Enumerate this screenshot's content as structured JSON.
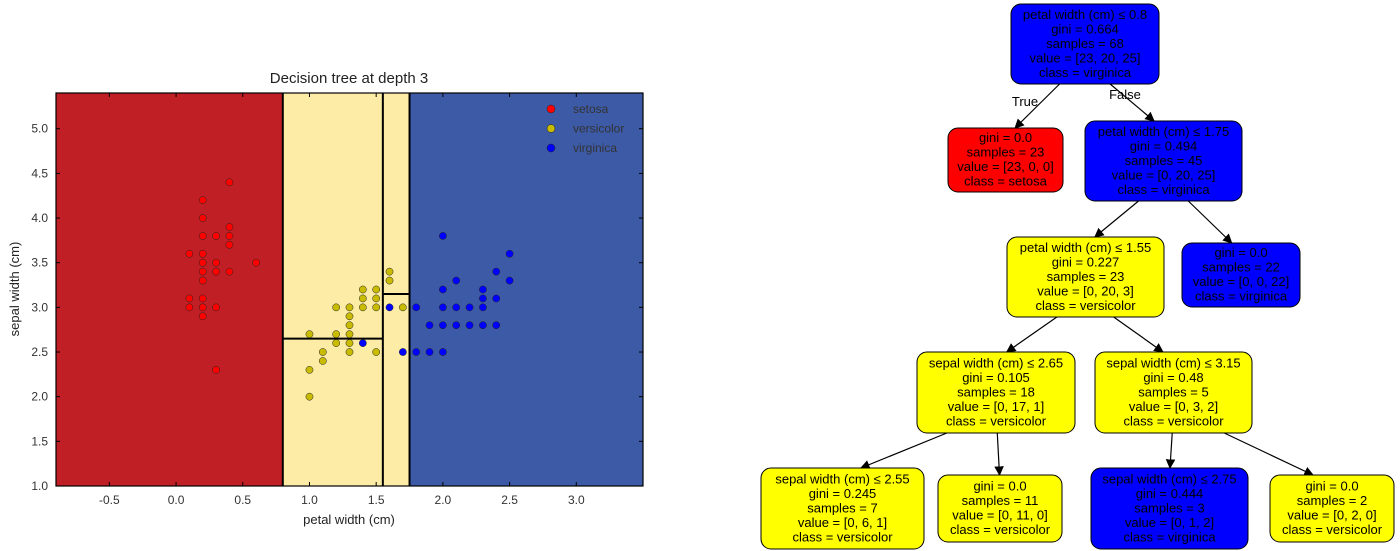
{
  "chart_data": [
    {
      "type": "scatter",
      "title": "Decision tree at depth 3",
      "xlabel": "petal width (cm)",
      "ylabel": "sepal width (cm)",
      "xlim": [
        -0.9,
        3.5
      ],
      "ylim": [
        1.0,
        5.4
      ],
      "xticks": [
        "-0.5",
        "0.0",
        "0.5",
        "1.0",
        "1.5",
        "2.0",
        "2.5",
        "3.0"
      ],
      "yticks": [
        "1.0",
        "1.5",
        "2.0",
        "2.5",
        "3.0",
        "3.5",
        "4.0",
        "4.5",
        "5.0"
      ],
      "grid": false,
      "legend_position": "top-right",
      "decision_regions": [
        {
          "class": "setosa",
          "x_range": [
            -0.9,
            0.8
          ],
          "y_range": [
            1.0,
            5.4
          ],
          "color": "#c11f26"
        },
        {
          "class": "versicolor",
          "x_range": [
            0.8,
            1.55
          ],
          "y_range": [
            1.0,
            5.4
          ],
          "color": "#fdeca6"
        },
        {
          "class": "versicolor",
          "x_range": [
            1.55,
            1.75
          ],
          "y_range": [
            1.0,
            5.4
          ],
          "color": "#fdeca6"
        },
        {
          "class": "virginica",
          "x_range": [
            1.75,
            3.5
          ],
          "y_range": [
            1.0,
            5.4
          ],
          "color": "#3c5aa6"
        }
      ],
      "boundaries": [
        {
          "x": [
            0.8,
            0.8
          ],
          "y": [
            1.0,
            5.4
          ]
        },
        {
          "x": [
            1.55,
            1.55
          ],
          "y": [
            1.0,
            5.4
          ]
        },
        {
          "x": [
            1.75,
            1.75
          ],
          "y": [
            1.0,
            5.4
          ]
        },
        {
          "x": [
            0.8,
            1.55
          ],
          "y": [
            2.65,
            2.65
          ]
        },
        {
          "x": [
            1.55,
            1.75
          ],
          "y": [
            3.15,
            3.15
          ]
        }
      ],
      "series": [
        {
          "name": "setosa",
          "color": "#ff0000",
          "points": [
            [
              0.1,
              3.6
            ],
            [
              0.2,
              3.6
            ],
            [
              0.1,
              3.1
            ],
            [
              0.1,
              3.0
            ],
            [
              0.2,
              4.2
            ],
            [
              0.2,
              4.0
            ],
            [
              0.2,
              3.8
            ],
            [
              0.2,
              3.5
            ],
            [
              0.2,
              3.4
            ],
            [
              0.2,
              3.3
            ],
            [
              0.2,
              3.1
            ],
            [
              0.2,
              3.0
            ],
            [
              0.2,
              2.9
            ],
            [
              0.3,
              3.8
            ],
            [
              0.3,
              3.5
            ],
            [
              0.3,
              3.4
            ],
            [
              0.3,
              3.0
            ],
            [
              0.3,
              2.3
            ],
            [
              0.4,
              4.4
            ],
            [
              0.4,
              3.9
            ],
            [
              0.4,
              3.8
            ],
            [
              0.4,
              3.7
            ],
            [
              0.4,
              3.4
            ],
            [
              0.6,
              3.5
            ]
          ]
        },
        {
          "name": "versicolor",
          "color": "#c8bb00",
          "points": [
            [
              1.0,
              2.7
            ],
            [
              1.0,
              2.3
            ],
            [
              1.0,
              2.0
            ],
            [
              1.1,
              2.5
            ],
            [
              1.1,
              2.4
            ],
            [
              1.2,
              3.0
            ],
            [
              1.2,
              2.7
            ],
            [
              1.2,
              2.6
            ],
            [
              1.3,
              3.0
            ],
            [
              1.3,
              2.9
            ],
            [
              1.3,
              2.8
            ],
            [
              1.3,
              2.7
            ],
            [
              1.3,
              2.6
            ],
            [
              1.3,
              2.5
            ],
            [
              1.4,
              3.2
            ],
            [
              1.4,
              3.1
            ],
            [
              1.4,
              3.0
            ],
            [
              1.5,
              3.2
            ],
            [
              1.5,
              3.1
            ],
            [
              1.5,
              3.0
            ],
            [
              1.5,
              2.5
            ],
            [
              1.6,
              3.4
            ],
            [
              1.6,
              3.3
            ],
            [
              1.7,
              3.0
            ]
          ]
        },
        {
          "name": "virginica",
          "color": "#0000ff",
          "points": [
            [
              1.4,
              2.6
            ],
            [
              1.6,
              3.0
            ],
            [
              1.7,
              2.5
            ],
            [
              1.8,
              3.0
            ],
            [
              1.8,
              2.5
            ],
            [
              1.9,
              2.8
            ],
            [
              1.9,
              2.5
            ],
            [
              2.0,
              3.8
            ],
            [
              2.0,
              3.2
            ],
            [
              2.0,
              3.0
            ],
            [
              2.0,
              2.8
            ],
            [
              2.0,
              2.5
            ],
            [
              2.1,
              3.3
            ],
            [
              2.1,
              3.0
            ],
            [
              2.1,
              2.8
            ],
            [
              2.2,
              3.0
            ],
            [
              2.2,
              2.8
            ],
            [
              2.3,
              3.2
            ],
            [
              2.3,
              3.1
            ],
            [
              2.3,
              3.0
            ],
            [
              2.3,
              2.8
            ],
            [
              2.4,
              3.4
            ],
            [
              2.4,
              3.1
            ],
            [
              2.4,
              2.8
            ],
            [
              2.5,
              3.6
            ],
            [
              2.5,
              3.3
            ]
          ]
        }
      ]
    },
    {
      "type": "tree",
      "nodes": [
        {
          "id": "n0",
          "lines": [
            "petal width (cm) ≤ 0.8",
            "gini = 0.664",
            "samples = 68",
            "value = [23, 20, 25]",
            "class = virginica"
          ],
          "fill": "#0000ff"
        },
        {
          "id": "n1",
          "lines": [
            "gini = 0.0",
            "samples = 23",
            "value = [23, 0, 0]",
            "class = setosa"
          ],
          "fill": "#ff0000"
        },
        {
          "id": "n2",
          "lines": [
            "petal width (cm) ≤ 1.75",
            "gini = 0.494",
            "samples = 45",
            "value = [0, 20, 25]",
            "class = virginica"
          ],
          "fill": "#0000ff"
        },
        {
          "id": "n3",
          "lines": [
            "petal width (cm) ≤ 1.55",
            "gini = 0.227",
            "samples = 23",
            "value = [0, 20, 3]",
            "class = versicolor"
          ],
          "fill": "#ffff00"
        },
        {
          "id": "n4",
          "lines": [
            "gini = 0.0",
            "samples = 22",
            "value = [0, 0, 22]",
            "class = virginica"
          ],
          "fill": "#0000ff"
        },
        {
          "id": "n5",
          "lines": [
            "sepal width (cm) ≤ 2.65",
            "gini = 0.105",
            "samples = 18",
            "value = [0, 17, 1]",
            "class = versicolor"
          ],
          "fill": "#ffff00"
        },
        {
          "id": "n6",
          "lines": [
            "sepal width (cm) ≤ 3.15",
            "gini = 0.48",
            "samples = 5",
            "value = [0, 3, 2]",
            "class = versicolor"
          ],
          "fill": "#ffff00"
        },
        {
          "id": "n7",
          "lines": [
            "sepal width (cm) ≤ 2.55",
            "gini = 0.245",
            "samples = 7",
            "value = [0, 6, 1]",
            "class = versicolor"
          ],
          "fill": "#ffff00"
        },
        {
          "id": "n8",
          "lines": [
            "gini = 0.0",
            "samples = 11",
            "value = [0, 11, 0]",
            "class = versicolor"
          ],
          "fill": "#ffff00"
        },
        {
          "id": "n9",
          "lines": [
            "sepal width (cm) ≤ 2.75",
            "gini = 0.444",
            "samples = 3",
            "value = [0, 1, 2]",
            "class = virginica"
          ],
          "fill": "#0000ff"
        },
        {
          "id": "n10",
          "lines": [
            "gini = 0.0",
            "samples = 2",
            "value = [0, 2, 0]",
            "class = versicolor"
          ],
          "fill": "#ffff00"
        }
      ],
      "edges": [
        {
          "from": "n0",
          "to": "n1",
          "label": "True"
        },
        {
          "from": "n0",
          "to": "n2",
          "label": "False"
        },
        {
          "from": "n2",
          "to": "n3",
          "label": ""
        },
        {
          "from": "n2",
          "to": "n4",
          "label": ""
        },
        {
          "from": "n3",
          "to": "n5",
          "label": ""
        },
        {
          "from": "n3",
          "to": "n6",
          "label": ""
        },
        {
          "from": "n5",
          "to": "n7",
          "label": ""
        },
        {
          "from": "n5",
          "to": "n8",
          "label": ""
        },
        {
          "from": "n6",
          "to": "n9",
          "label": ""
        },
        {
          "from": "n6",
          "to": "n10",
          "label": ""
        }
      ]
    }
  ]
}
